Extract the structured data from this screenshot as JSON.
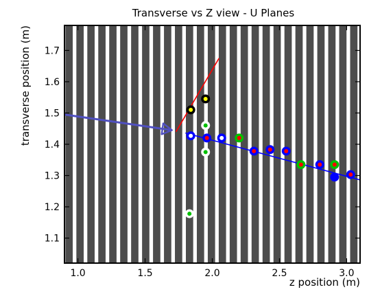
{
  "chart_data": {
    "type": "scatter",
    "title": "Transverse vs Z view - U Planes",
    "xlabel": "z position (m)",
    "ylabel": "transverse position (m)",
    "xlim": [
      0.9,
      3.1
    ],
    "ylim": [
      1.02,
      1.78
    ],
    "x_ticks": [
      1.0,
      1.5,
      2.0,
      2.5,
      3.0
    ],
    "x_tick_labels": [
      "1.0",
      "1.5",
      "2.0",
      "2.5",
      "3.0"
    ],
    "y_ticks": [
      1.1,
      1.2,
      1.3,
      1.4,
      1.5,
      1.6,
      1.7
    ],
    "y_tick_labels": [
      "1.1",
      "1.2",
      "1.3",
      "1.4",
      "1.5",
      "1.6",
      "1.7"
    ],
    "grid": false,
    "background": {
      "stripes_start_z": 0.907,
      "stripe_pitch_z": 0.0815,
      "dark_stripe_width_z": 0.0545,
      "stripe_color": "#4d4d4d",
      "gap_color": "#ffffff"
    },
    "lines": [
      {
        "color": "#5050c0",
        "width_class": "thick",
        "points": [
          [
            0.9,
            1.495
          ],
          [
            1.7,
            1.445
          ]
        ],
        "arrow_at_end": true
      },
      {
        "color": "#ff0000",
        "width_class": "thin",
        "points": [
          [
            1.73,
            1.44
          ],
          [
            2.05,
            1.675
          ]
        ],
        "arrow_at_end": false
      },
      {
        "color": "#0000ff",
        "width_class": "thin",
        "points": [
          [
            1.8,
            1.436
          ],
          [
            3.1,
            1.286
          ]
        ],
        "arrow_at_end": false
      }
    ],
    "series": [
      {
        "ring_color": "#000000",
        "center_color": "#ffff00",
        "points": [
          [
            1.84,
            1.51
          ],
          [
            1.95,
            1.545
          ]
        ]
      },
      {
        "ring_color": "#ffffff",
        "center_color": "#00c000",
        "points": [
          [
            1.95,
            1.46
          ],
          [
            1.95,
            1.375
          ],
          [
            1.83,
            1.178
          ]
        ]
      },
      {
        "ring_color": "#00c000",
        "center_color": "#ff0000",
        "points": [
          [
            2.2,
            1.42
          ],
          [
            2.66,
            1.335
          ],
          [
            2.91,
            1.335
          ]
        ]
      },
      {
        "ring_color": "#0000ff",
        "center_color": "#ffffff",
        "points": [
          [
            1.84,
            1.427
          ],
          [
            2.07,
            1.42
          ]
        ]
      },
      {
        "ring_color": "#0000ff",
        "center_color": "#ff0000",
        "points": [
          [
            1.96,
            1.42
          ],
          [
            2.31,
            1.378
          ],
          [
            2.43,
            1.383
          ],
          [
            2.55,
            1.378
          ],
          [
            2.8,
            1.335
          ],
          [
            3.03,
            1.303
          ]
        ]
      },
      {
        "ring_color": "#0000ff",
        "center_color": "#0000ff",
        "points": [
          [
            2.91,
            1.295
          ]
        ]
      }
    ]
  }
}
